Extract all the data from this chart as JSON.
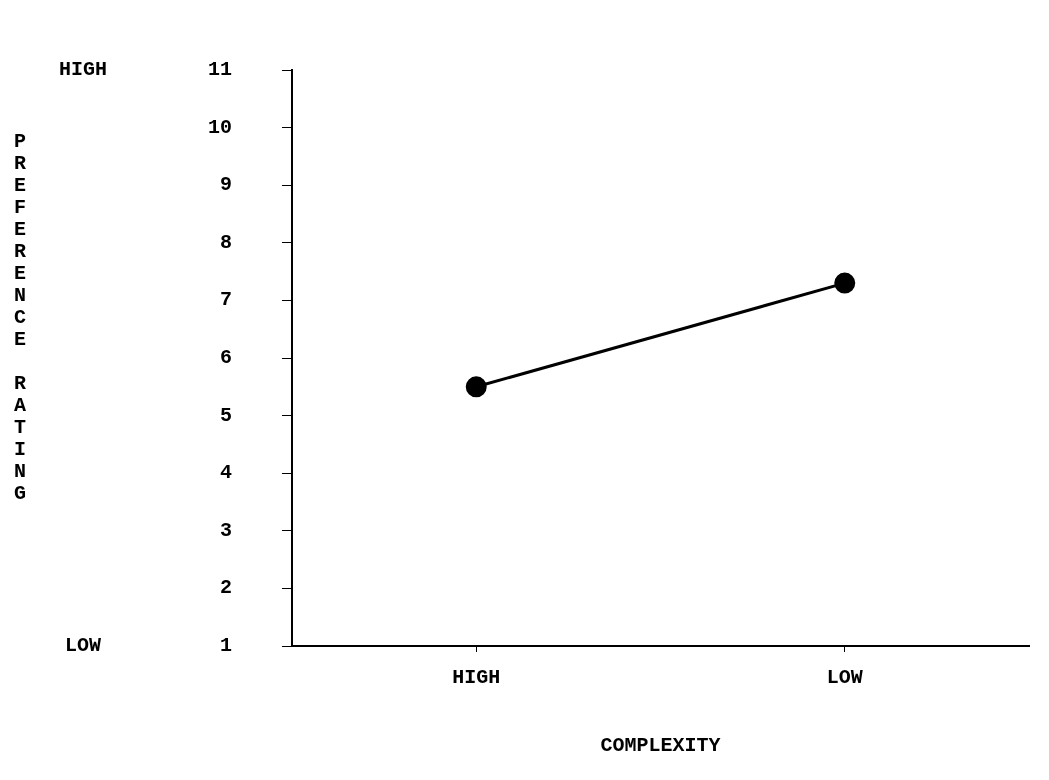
{
  "chart_data": {
    "type": "line",
    "xlabel": "COMPLEXITY",
    "ylabel": "PREFERENCE RATING",
    "categories": [
      "HIGH",
      "LOW"
    ],
    "series": [
      {
        "color": "#000000",
        "values": [
          5.5,
          7.3
        ]
      }
    ],
    "ylim": [
      1,
      11
    ],
    "yticks": [
      1,
      2,
      3,
      4,
      5,
      6,
      7,
      8,
      9,
      10,
      11
    ],
    "annotations": [
      "HIGH",
      "LOW"
    ],
    "grid": false,
    "legend": false,
    "marker": "circle",
    "line_style": "solid"
  }
}
